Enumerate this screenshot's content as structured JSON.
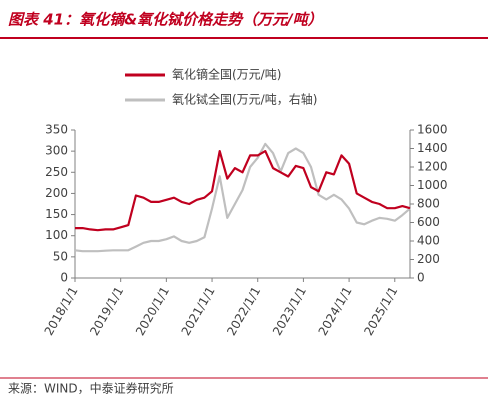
{
  "chart_data": {
    "type": "line",
    "title": "图表 41：氧化镝&氧化铽价格走势（万元/吨）",
    "source": "来源：WIND，中泰证券研究所",
    "x": [
      "2018/1/1",
      "2018/3/1",
      "2018/5/1",
      "2018/7/1",
      "2018/9/1",
      "2018/11/1",
      "2019/1/1",
      "2019/3/1",
      "2019/5/1",
      "2019/7/1",
      "2019/9/1",
      "2019/11/1",
      "2020/1/1",
      "2020/3/1",
      "2020/5/1",
      "2020/7/1",
      "2020/9/1",
      "2020/11/1",
      "2021/1/1",
      "2021/3/1",
      "2021/5/1",
      "2021/7/1",
      "2021/9/1",
      "2021/11/1",
      "2022/1/1",
      "2022/3/1",
      "2022/5/1",
      "2022/7/1",
      "2022/9/1",
      "2022/11/1",
      "2023/1/1",
      "2023/3/1",
      "2023/5/1",
      "2023/7/1",
      "2023/9/1",
      "2023/11/1",
      "2024/1/1",
      "2024/3/1",
      "2024/5/1",
      "2024/7/1",
      "2024/9/1",
      "2024/11/1",
      "2025/1/1",
      "2025/3/1",
      "2025/5/1"
    ],
    "series": [
      {
        "name": "氧化镝全国(万元/吨)",
        "color": "#c0001f",
        "axis": "y",
        "values": [
          118,
          118,
          115,
          113,
          115,
          115,
          120,
          125,
          195,
          190,
          180,
          180,
          185,
          190,
          180,
          175,
          185,
          190,
          205,
          300,
          235,
          260,
          250,
          290,
          290,
          300,
          260,
          250,
          240,
          265,
          260,
          215,
          205,
          250,
          245,
          290,
          270,
          200,
          190,
          180,
          175,
          165,
          165,
          170,
          165
        ]
      },
      {
        "name": "氧化铽全国(万元/吨，右轴)",
        "color": "#bfbfbf",
        "axis": "y2",
        "values": [
          300,
          290,
          290,
          290,
          295,
          300,
          300,
          300,
          340,
          380,
          400,
          400,
          420,
          450,
          400,
          380,
          400,
          440,
          750,
          1100,
          650,
          800,
          950,
          1200,
          1300,
          1450,
          1350,
          1150,
          1350,
          1400,
          1350,
          1200,
          900,
          850,
          900,
          850,
          750,
          600,
          580,
          620,
          650,
          640,
          620,
          680,
          750
        ]
      }
    ],
    "xlim": [
      "2018/1/1",
      "2025/5/1"
    ],
    "xticks": [
      "2018/1/1",
      "2019/1/1",
      "2020/1/1",
      "2021/1/1",
      "2022/1/1",
      "2023/1/1",
      "2024/1/1",
      "2025/1/1"
    ],
    "ylim": [
      0,
      350
    ],
    "yticks": [
      0,
      50,
      100,
      150,
      200,
      250,
      300,
      350
    ],
    "y2lim": [
      0,
      1600
    ],
    "y2ticks": [
      0,
      200,
      400,
      600,
      800,
      1000,
      1200,
      1400,
      1600
    ]
  }
}
